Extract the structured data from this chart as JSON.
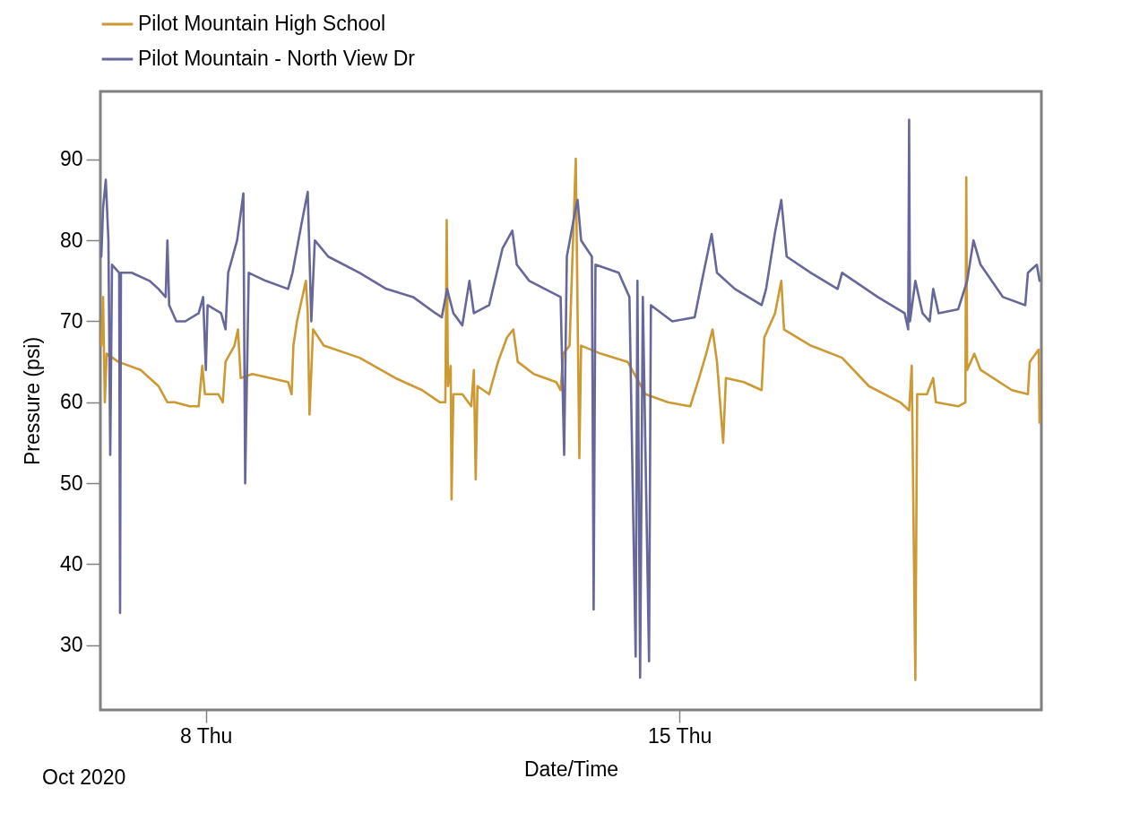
{
  "chart_data": {
    "type": "line",
    "xlabel": "Date/Time",
    "ylabel": "Pressure (psi)",
    "annotations": [
      "Oct 2020"
    ],
    "xlim": [
      6.441,
      20.35
    ],
    "xticks": [
      {
        "value": 8,
        "label": "8 Thu"
      },
      {
        "value": 15,
        "label": "15 Thu"
      }
    ],
    "ylim": [
      22,
      98.4
    ],
    "yticks": [
      30,
      40,
      50,
      60,
      70,
      80,
      90
    ],
    "grid": false,
    "legend": "top left",
    "marker": "none",
    "line_style": "solid",
    "series": [
      {
        "name": "Pilot Mountain High School",
        "color": "#cc9933",
        "x": [
          6.455,
          6.481,
          6.507,
          6.534,
          6.706,
          7.036,
          7.3,
          7.432,
          7.538,
          7.762,
          7.894,
          7.947,
          7.987,
          8.185,
          8.251,
          8.291,
          8.423,
          8.475,
          8.515,
          8.687,
          9.215,
          9.268,
          9.294,
          9.347,
          9.479,
          9.506,
          9.532,
          9.585,
          9.743,
          10.272,
          10.8,
          11.196,
          11.46,
          11.54,
          11.56,
          11.579,
          11.619,
          11.632,
          11.659,
          11.791,
          11.923,
          11.962,
          11.989,
          12.015,
          12.187,
          12.319,
          12.451,
          12.544,
          12.61,
          12.847,
          13.178,
          13.244,
          13.283,
          13.376,
          13.468,
          13.495,
          13.521,
          13.547,
          13.838,
          14.234,
          14.366,
          14.498,
          14.829,
          15.159,
          15.291,
          15.396,
          15.489,
          15.555,
          15.647,
          15.687,
          15.951,
          16.215,
          16.255,
          16.413,
          16.506,
          16.546,
          16.942,
          17.404,
          17.8,
          18.263,
          18.395,
          18.434,
          18.487,
          18.514,
          18.659,
          18.751,
          18.791,
          19.121,
          19.227,
          19.24,
          19.253,
          19.359,
          19.451,
          19.914,
          20.151,
          20.178,
          20.31,
          20.323
        ],
        "values": [
          67,
          73,
          60,
          66,
          65,
          64,
          62,
          60,
          60,
          59.5,
          59.5,
          64.5,
          61,
          61,
          60,
          65,
          67,
          69,
          63,
          63.5,
          62.5,
          61,
          67,
          70,
          75,
          71,
          58.5,
          69,
          67,
          65.5,
          63,
          61.5,
          60,
          60,
          82.5,
          62,
          64.5,
          48,
          61,
          61,
          59.5,
          64,
          50.5,
          62,
          61,
          65,
          68,
          69,
          65,
          63.5,
          62.5,
          61.5,
          66,
          67,
          90.1,
          71,
          53.1,
          67,
          66,
          65,
          63,
          61,
          60,
          59.5,
          63,
          66,
          69,
          65,
          55,
          63,
          62.5,
          61.5,
          68,
          71,
          75,
          69,
          67,
          65.5,
          62,
          60,
          59,
          64.5,
          25.7,
          61,
          61,
          63,
          60,
          59.5,
          60,
          87.8,
          64,
          66,
          64,
          61.5,
          61,
          65,
          66.5,
          57.5
        ]
      },
      {
        "name": "Pilot Mountain - North View Dr",
        "color": "#67679a",
        "x": [
          6.455,
          6.481,
          6.521,
          6.56,
          6.587,
          6.613,
          6.719,
          6.732,
          6.745,
          6.904,
          7.168,
          7.3,
          7.406,
          7.432,
          7.458,
          7.564,
          7.696,
          7.894,
          7.96,
          8,
          8.026,
          8.225,
          8.291,
          8.33,
          8.462,
          8.555,
          8.581,
          8.634,
          8.885,
          9.215,
          9.281,
          9.413,
          9.506,
          9.559,
          9.611,
          9.809,
          10.272,
          10.668,
          11.064,
          11.394,
          11.487,
          11.566,
          11.659,
          11.791,
          11.896,
          11.962,
          12.187,
          12.385,
          12.53,
          12.596,
          12.781,
          13.244,
          13.296,
          13.336,
          13.468,
          13.495,
          13.547,
          13.706,
          13.732,
          13.759,
          14.102,
          14.261,
          14.353,
          14.379,
          14.419,
          14.459,
          14.551,
          14.578,
          14.895,
          15.225,
          15.357,
          15.476,
          15.555,
          15.819,
          16.215,
          16.281,
          16.413,
          16.506,
          16.585,
          16.942,
          17.338,
          17.404,
          17.932,
          18.329,
          18.381,
          18.395,
          18.408,
          18.487,
          18.593,
          18.698,
          18.751,
          18.831,
          19.121,
          19.253,
          19.346,
          19.451,
          19.782,
          20.112,
          20.151,
          20.283,
          20.323
        ],
        "values": [
          78,
          84,
          87.5,
          80,
          53.5,
          77,
          76,
          34,
          76,
          76,
          75,
          74,
          73,
          80,
          72,
          70,
          70,
          71,
          73,
          64,
          72,
          71,
          69,
          76,
          80,
          85.8,
          50,
          76,
          75,
          74,
          76,
          82,
          86,
          70,
          80,
          78,
          76,
          74,
          73,
          71,
          70.5,
          74,
          71,
          69.5,
          75,
          71,
          72,
          79,
          81.2,
          77,
          75,
          73,
          53.5,
          78,
          84,
          85,
          80,
          78,
          34.4,
          77,
          76,
          73,
          28.6,
          75,
          26,
          73,
          28,
          72,
          70,
          70.5,
          76,
          80.8,
          76,
          74,
          72,
          74,
          81,
          85,
          78,
          76,
          74,
          76,
          73,
          71,
          69,
          94.9,
          70,
          75,
          71,
          70,
          74,
          71,
          71.5,
          75,
          80,
          77,
          73,
          72,
          76,
          77,
          75
        ]
      }
    ]
  }
}
